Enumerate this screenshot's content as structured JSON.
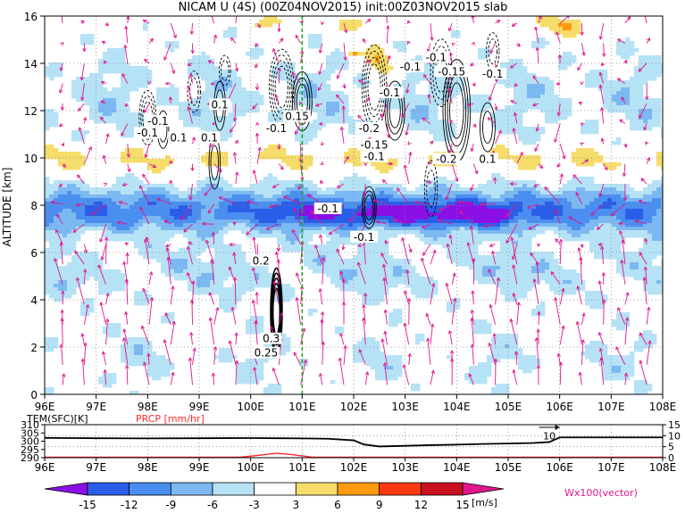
{
  "title": "NICAM U (4S) (00Z04NOV2015) init:00Z03NOV2015 slab",
  "colors": {
    "contour": "#000000",
    "vector": "#e0168c",
    "reference_line": "#22aa22",
    "precip_line": "#ff2a2a",
    "levels": [
      "#8a10e6",
      "#2a5ee8",
      "#4a8ef0",
      "#7cb8f2",
      "#b6e2f6",
      "#ffffff",
      "#f6dc6a",
      "#ff9a10",
      "#ff3a10",
      "#c8101e",
      "#e0168c"
    ]
  },
  "chart_data": [
    {
      "type": "heatmap",
      "title": "NICAM U (4S) (00Z04NOV2015) init:00Z03NOV2015 slab",
      "xlabel": "",
      "ylabel": "ALTITUDE [km]",
      "x_range": [
        96,
        108
      ],
      "y_range": [
        0,
        16
      ],
      "x_ticks": [
        "96E",
        "97E",
        "98E",
        "99E",
        "100E",
        "101E",
        "102E",
        "103E",
        "104E",
        "105E",
        "106E",
        "107E",
        "108E"
      ],
      "x_tick_values": [
        96,
        97,
        98,
        99,
        100,
        101,
        102,
        103,
        104,
        105,
        106,
        107,
        108
      ],
      "y_ticks": [
        "0",
        "2",
        "4",
        "6",
        "8",
        "10",
        "12",
        "14",
        "16"
      ],
      "y_tick_values": [
        0,
        2,
        4,
        6,
        8,
        10,
        12,
        14,
        16
      ],
      "grid": true,
      "colorbar": {
        "levels": [
          -15,
          -12,
          -9,
          -6,
          -3,
          3,
          6,
          9,
          12,
          15
        ],
        "tick_labels": [
          "-15",
          "-12",
          "-9",
          "-6",
          "-3",
          "3",
          "6",
          "9",
          "12",
          "15"
        ],
        "unit": "[m/s]"
      },
      "vector_label": "Wx100(vector)",
      "reference_line_x": 101,
      "contour_labels": [
        {
          "text": "-0.1",
          "x": 98.0,
          "y": 10.9
        },
        {
          "text": "-0.1",
          "x": 98.2,
          "y": 11.4
        },
        {
          "text": "0.1",
          "x": 98.6,
          "y": 10.7
        },
        {
          "text": "0.1",
          "x": 99.2,
          "y": 10.7
        },
        {
          "text": "0.1",
          "x": 99.4,
          "y": 12.1
        },
        {
          "text": "-0.1",
          "x": 100.5,
          "y": 11.1
        },
        {
          "text": "0.15",
          "x": 100.9,
          "y": 11.6
        },
        {
          "text": "-0.1",
          "x": 103.1,
          "y": 13.7
        },
        {
          "text": "-0.1",
          "x": 102.7,
          "y": 12.6
        },
        {
          "text": "-0.1",
          "x": 103.6,
          "y": 14.1
        },
        {
          "text": "-0.15",
          "x": 103.9,
          "y": 13.5
        },
        {
          "text": "-0.1",
          "x": 104.7,
          "y": 13.4
        },
        {
          "text": "-0.2",
          "x": 102.3,
          "y": 11.1
        },
        {
          "text": "-0.15",
          "x": 102.4,
          "y": 10.4
        },
        {
          "text": "-0.1",
          "x": 102.4,
          "y": 9.9
        },
        {
          "text": "-0.2",
          "x": 103.8,
          "y": 9.8
        },
        {
          "text": "0.1",
          "x": 104.6,
          "y": 9.8
        },
        {
          "text": "-0.1",
          "x": 101.5,
          "y": 7.7
        },
        {
          "text": "-0.1",
          "x": 102.2,
          "y": 6.5
        },
        {
          "text": "0.2",
          "x": 100.2,
          "y": 5.5
        },
        {
          "text": "0.3",
          "x": 100.4,
          "y": 2.2
        },
        {
          "text": "0.25",
          "x": 100.3,
          "y": 1.6
        }
      ]
    },
    {
      "type": "line",
      "x_range": [
        96,
        108
      ],
      "x_ticks": [
        "96E",
        "97E",
        "98E",
        "99E",
        "100E",
        "101E",
        "102E",
        "103E",
        "104E",
        "105E",
        "106E",
        "107E",
        "108E"
      ],
      "x_tick_values": [
        96,
        97,
        98,
        99,
        100,
        101,
        102,
        103,
        104,
        105,
        106,
        107,
        108
      ],
      "left_axis": {
        "label": "TEM(SFC)[K]",
        "ticks": [
          "290",
          "295",
          "300",
          "305",
          "310"
        ],
        "range": [
          290,
          310
        ]
      },
      "right_axis": {
        "label": "PRCP [mm/hr]",
        "ticks": [
          "0",
          "5",
          "10",
          "15"
        ],
        "range": [
          0,
          15
        ]
      },
      "annotations": [
        {
          "text": "10",
          "x": 105.8,
          "y": 10
        }
      ],
      "series": [
        {
          "name": "TEM(SFC)[K]",
          "axis": "left",
          "color": "#000000",
          "x": [
            96,
            96.5,
            97,
            98,
            99,
            100,
            100.5,
            101,
            101.5,
            102,
            102.2,
            102.5,
            103,
            103.5,
            104,
            104.5,
            105,
            105.5,
            105.8,
            106,
            106.5,
            107,
            108
          ],
          "y": [
            302,
            301.9,
            301.8,
            301.7,
            301.8,
            301.9,
            301.8,
            301.7,
            301.5,
            300.5,
            298,
            296.8,
            297.2,
            297.6,
            297.9,
            298.3,
            298.6,
            298.9,
            299.5,
            302.3,
            302.3,
            302.3,
            302.3
          ]
        },
        {
          "name": "PRCP [mm/hr]",
          "axis": "right",
          "color": "#ff2a2a",
          "x": [
            96,
            99,
            99.8,
            100.2,
            100.5,
            100.8,
            101.2,
            102,
            104,
            106,
            108
          ],
          "y": [
            0.2,
            0.2,
            0.2,
            1.2,
            2.0,
            1.4,
            0.2,
            0.2,
            0.2,
            0.2,
            0.2
          ]
        }
      ]
    }
  ]
}
